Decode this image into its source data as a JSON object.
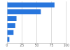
{
  "chart_data": {
    "type": "bar",
    "orientation": "horizontal",
    "categories": [
      null,
      null,
      null,
      null,
      null,
      null
    ],
    "values": [
      80,
      57,
      16,
      14,
      11,
      4
    ],
    "color": "#2876dd",
    "xlim": [
      0,
      100
    ],
    "xticks": [
      0,
      25,
      50,
      75,
      100
    ],
    "grid": true,
    "tick_labels": "x"
  }
}
